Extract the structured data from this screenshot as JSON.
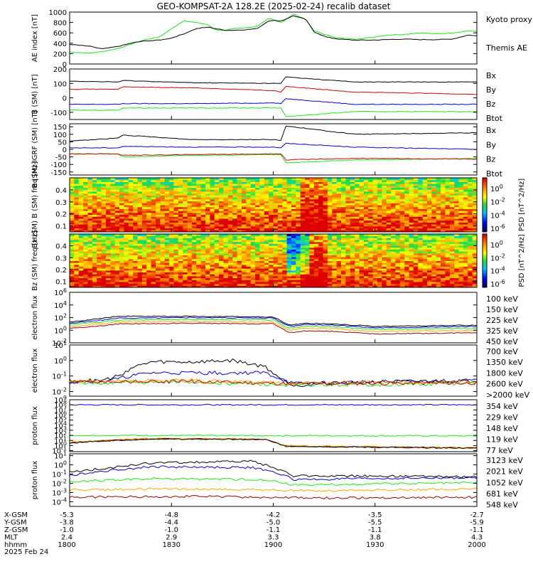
{
  "title": "GEO-KOMPSAT-2A 128.2E (2025-02-24) recalib dataset",
  "colors": {
    "black": "#000000",
    "red": "#d20000",
    "green": "#19e619",
    "blue": "#0000d2",
    "orange": "#ffa500",
    "darkred": "#960000",
    "navy": "#00008c"
  },
  "time_axis": {
    "ticks": [
      {
        "xgsm": "-5.3",
        "ygsm": "-3.8",
        "zgsm": "-1.0",
        "mlt": "2.4",
        "hhmm": "1800"
      },
      {
        "xgsm": "-4.8",
        "ygsm": "-4.4",
        "zgsm": "-1.0",
        "mlt": "2.9",
        "hhmm": "1830"
      },
      {
        "xgsm": "-4.2",
        "ygsm": "-5.0",
        "zgsm": "-1.1",
        "mlt": "3.3",
        "hhmm": "1900"
      },
      {
        "xgsm": "-3.5",
        "ygsm": "-5.5",
        "zgsm": "-1.1",
        "mlt": "3.8",
        "hhmm": "1930"
      },
      {
        "xgsm": "-2.7",
        "ygsm": "-5.9",
        "zgsm": "-1.1",
        "mlt": "4.3",
        "hhmm": "2000"
      }
    ],
    "row_labels": [
      "X-GSM",
      "Y-GSM",
      "Z-GSM",
      "MLT",
      "hhmm"
    ],
    "date_label": "2025 Feb 24"
  },
  "chart_data": [
    {
      "type": "line",
      "ylabel": "AE index [nT]",
      "ylim": [
        0,
        1000
      ],
      "yticks": [
        "0",
        "200",
        "400",
        "600",
        "800",
        "1000"
      ],
      "series": [
        {
          "name": "Kyoto proxy AE",
          "color": "#19e619",
          "x": [
            0,
            5,
            8,
            12,
            15,
            18,
            22,
            25,
            28,
            31,
            34,
            36,
            38,
            40,
            43,
            46,
            49,
            52,
            55,
            58,
            60,
            63,
            66,
            70,
            74,
            78,
            82,
            86,
            90,
            94,
            98,
            100
          ],
          "y": [
            230,
            210,
            240,
            300,
            380,
            460,
            520,
            680,
            830,
            800,
            760,
            650,
            650,
            680,
            700,
            720,
            880,
            800,
            960,
            860,
            640,
            560,
            500,
            480,
            510,
            560,
            570,
            600,
            580,
            600,
            640,
            620
          ]
        },
        {
          "name": "Themis AE",
          "color": "#000000",
          "x": [
            0,
            5,
            8,
            12,
            15,
            18,
            22,
            25,
            28,
            31,
            34,
            36,
            38,
            40,
            43,
            46,
            49,
            52,
            55,
            58,
            60,
            63,
            66,
            70,
            74,
            78,
            82,
            86,
            90,
            94,
            98,
            100
          ],
          "y": [
            380,
            340,
            290,
            340,
            400,
            440,
            460,
            500,
            580,
            680,
            710,
            680,
            650,
            650,
            660,
            680,
            840,
            830,
            930,
            860,
            620,
            520,
            480,
            460,
            460,
            470,
            480,
            470,
            470,
            480,
            560,
            540
          ]
        }
      ]
    },
    {
      "type": "line",
      "ylabel": "B (SM) [nT]",
      "ylim": [
        -150,
        200
      ],
      "yticks": [
        "-100",
        "0",
        "100",
        "200"
      ],
      "series": [
        {
          "name": "Bx",
          "color": "#0000d2",
          "x": [
            0,
            12,
            13,
            30,
            50,
            52,
            53,
            70,
            100
          ],
          "y": [
            -45,
            -45,
            -40,
            -40,
            -35,
            -40,
            -5,
            -45,
            -45
          ]
        },
        {
          "name": "By",
          "color": "#19e619",
          "x": [
            0,
            12,
            13,
            30,
            50,
            52,
            53,
            70,
            100
          ],
          "y": [
            -85,
            -85,
            -70,
            -70,
            -70,
            -70,
            -130,
            -95,
            -95
          ]
        },
        {
          "name": "Bz",
          "color": "#d20000",
          "x": [
            0,
            12,
            13,
            30,
            50,
            52,
            53,
            70,
            100
          ],
          "y": [
            60,
            60,
            75,
            70,
            50,
            40,
            80,
            40,
            25
          ]
        },
        {
          "name": "Btot",
          "color": "#000000",
          "x": [
            0,
            12,
            13,
            30,
            50,
            52,
            53,
            70,
            100
          ],
          "y": [
            115,
            110,
            120,
            105,
            100,
            100,
            145,
            110,
            110
          ]
        }
      ]
    },
    {
      "type": "line",
      "ylabel": "B (SM)-IGRF (SM) [nT]",
      "ylim": [
        -170,
        170
      ],
      "yticks": [
        "-150",
        "-100",
        "-50",
        "0",
        "50",
        "100",
        "150"
      ],
      "series": [
        {
          "name": "Bx",
          "color": "#0000d2",
          "x": [
            0,
            12,
            13,
            30,
            50,
            52,
            53,
            70,
            100
          ],
          "y": [
            10,
            10,
            20,
            15,
            15,
            10,
            40,
            15,
            0
          ]
        },
        {
          "name": "By",
          "color": "#19e619",
          "x": [
            0,
            12,
            13,
            30,
            50,
            52,
            53,
            70,
            100
          ],
          "y": [
            -30,
            -30,
            -50,
            -40,
            -35,
            -35,
            -90,
            -70,
            -60
          ]
        },
        {
          "name": "Bz",
          "color": "#d20000",
          "x": [
            0,
            12,
            13,
            30,
            50,
            52,
            53,
            70,
            100
          ],
          "y": [
            -30,
            -30,
            -40,
            -35,
            -30,
            -30,
            -70,
            -60,
            -65
          ]
        },
        {
          "name": "Btot",
          "color": "#000000",
          "x": [
            0,
            12,
            13,
            30,
            50,
            52,
            53,
            70,
            100
          ],
          "y": [
            55,
            75,
            95,
            65,
            65,
            60,
            155,
            100,
            110
          ]
        }
      ]
    },
    {
      "type": "heatmap",
      "ylabel": "Bx (SM) B (SM) freq [Hz]",
      "ylim": [
        0.05,
        0.5
      ],
      "yticks": [
        "0.1",
        "0.2",
        "0.3",
        "0.4"
      ],
      "colorbar": {
        "label": "PSD [nT^2/Hz]",
        "ticks": [
          "10^0",
          "10^-2",
          "10^-4",
          "10^-6"
        ]
      }
    },
    {
      "type": "heatmap",
      "ylabel": "Bz (SM) freq [Hz]",
      "ylim": [
        0.05,
        0.5
      ],
      "yticks": [
        "0.1",
        "0.2",
        "0.3",
        "0.4"
      ],
      "colorbar": {
        "label": "PSD [nT^2/Hz]",
        "ticks": [
          "10^0",
          "10^-2",
          "10^-4",
          "10^-6"
        ]
      }
    },
    {
      "type": "line",
      "log_scale": true,
      "ylabel": "electron flux",
      "ylim": [
        -2,
        6
      ],
      "yticks": [
        "10^-2",
        "10^0",
        "10^2",
        "10^4",
        "10^6"
      ],
      "series": [
        {
          "name": "100 keV",
          "color": "#000000",
          "x": [
            0,
            8,
            12,
            30,
            50,
            54,
            58,
            65,
            75,
            100
          ],
          "y": [
            1.3,
            1.9,
            2.2,
            2.2,
            2.1,
            0.8,
            1.1,
            1.0,
            0.6,
            0.8
          ]
        },
        {
          "name": "150 keV",
          "color": "#0000d2",
          "x": [
            0,
            8,
            12,
            30,
            50,
            54,
            58,
            65,
            75,
            100
          ],
          "y": [
            1.1,
            1.6,
            1.9,
            2.0,
            1.9,
            0.6,
            0.9,
            0.8,
            0.4,
            0.6
          ]
        },
        {
          "name": "225 keV",
          "color": "#19e619",
          "x": [
            0,
            8,
            12,
            30,
            50,
            54,
            58,
            65,
            75,
            100
          ],
          "y": [
            0.9,
            1.3,
            1.6,
            1.7,
            1.6,
            0.3,
            0.6,
            0.5,
            0.1,
            0.3
          ]
        },
        {
          "name": "325 keV",
          "color": "#ffa500",
          "x": [
            0,
            8,
            12,
            30,
            50,
            54,
            58,
            65,
            75,
            100
          ],
          "y": [
            0.6,
            1.0,
            1.3,
            1.4,
            1.3,
            0.0,
            0.3,
            0.2,
            -0.2,
            0.0
          ]
        },
        {
          "name": "450 keV",
          "color": "#960000",
          "x": [
            0,
            8,
            12,
            30,
            50,
            54,
            58,
            65,
            75,
            100
          ],
          "y": [
            0.3,
            0.7,
            1.0,
            1.1,
            1.0,
            -0.4,
            -0.1,
            -0.2,
            -0.6,
            -0.4
          ]
        }
      ]
    },
    {
      "type": "line",
      "log_scale": true,
      "ylabel": "electron flux",
      "ylim": [
        -2.3,
        1
      ],
      "yticks": [
        "10^-2",
        "10^-1",
        "10^0",
        "10^1"
      ],
      "series": [
        {
          "name": "700 keV",
          "color": "#000000",
          "x": [
            0,
            8,
            12,
            15,
            20,
            30,
            40,
            48,
            52,
            55,
            70,
            100
          ],
          "y": [
            -1.3,
            -1.3,
            -1.0,
            -0.5,
            -0.1,
            -0.1,
            0.0,
            -0.4,
            -1.2,
            -1.6,
            -1.4,
            -1.3
          ]
        },
        {
          "name": "1350 keV",
          "color": "#0000d2",
          "x": [
            0,
            8,
            12,
            15,
            20,
            30,
            40,
            48,
            52,
            55,
            70,
            100
          ],
          "y": [
            -1.4,
            -1.3,
            -1.2,
            -1.0,
            -0.8,
            -0.8,
            -0.8,
            -0.8,
            -1.2,
            -1.5,
            -1.4,
            -1.3
          ]
        },
        {
          "name": "1800 keV",
          "color": "#19e619",
          "x": [
            0,
            30,
            55,
            100
          ],
          "y": [
            -1.45,
            -1.4,
            -1.6,
            -1.5
          ]
        },
        {
          "name": "2600 keV",
          "color": "#ffa500",
          "x": [
            0,
            30,
            55,
            100
          ],
          "y": [
            -1.35,
            -1.3,
            -1.45,
            -1.4
          ]
        },
        {
          "name": ">2000 keV",
          "color": "#d20000",
          "x": [
            0,
            30,
            55,
            100
          ],
          "y": [
            -1.4,
            -1.35,
            -1.5,
            -1.45
          ]
        }
      ]
    },
    {
      "type": "line",
      "log_scale": true,
      "ylabel": "proton flux",
      "ylim": [
        -1.2,
        9
      ],
      "yticks": [
        "10^-1",
        "10^0",
        "10^1",
        "10^2",
        "10^3",
        "10^4",
        "10^5",
        "10^6",
        "10^7",
        "10^8",
        "10^9"
      ],
      "series": [
        {
          "name": "354 keV",
          "color": "#960000",
          "x": [
            0,
            10,
            20,
            48,
            53,
            70,
            100
          ],
          "y": [
            0.5,
            1.0,
            1.3,
            1.2,
            -0.1,
            -0.3,
            -0.5
          ]
        },
        {
          "name": "229 keV",
          "color": "#ffa500",
          "x": [
            0,
            10,
            20,
            48,
            53,
            70,
            100
          ],
          "y": [
            0.6,
            1.1,
            1.4,
            1.3,
            0.0,
            -0.2,
            -0.4
          ]
        },
        {
          "name": "148 keV",
          "color": "#19e619",
          "x": [
            0,
            100
          ],
          "y": [
            2.0,
            1.9
          ]
        },
        {
          "name": "119 keV",
          "color": "#0000d2",
          "x": [
            0,
            100
          ],
          "y": [
            8.0,
            8.0
          ]
        },
        {
          "name": "77 keV",
          "color": "#000000",
          "x": [
            0,
            10,
            20,
            48,
            53,
            70,
            100
          ],
          "y": [
            0.5,
            1.0,
            1.3,
            1.2,
            -0.1,
            -0.3,
            -0.5
          ]
        }
      ]
    },
    {
      "type": "line",
      "log_scale": true,
      "ylabel": "proton flux",
      "ylim": [
        -4.5,
        1.2
      ],
      "yticks": [
        "10^-4",
        "10^-3",
        "10^-2",
        "10^-1",
        "10^0",
        "10^1"
      ],
      "series": [
        {
          "name": "3123 keV",
          "color": "#960000",
          "x": [
            0,
            30,
            60,
            100
          ],
          "y": [
            -3.5,
            -3.4,
            -3.6,
            -3.5
          ]
        },
        {
          "name": "2021 keV",
          "color": "#ffa500",
          "x": [
            0,
            30,
            60,
            100
          ],
          "y": [
            -2.7,
            -2.6,
            -2.8,
            -2.6
          ]
        },
        {
          "name": "1052 keV",
          "color": "#19e619",
          "x": [
            0,
            20,
            48,
            55,
            100
          ],
          "y": [
            -1.8,
            -1.5,
            -1.6,
            -2.2,
            -1.9
          ]
        },
        {
          "name": "681 keV",
          "color": "#0000d2",
          "x": [
            0,
            10,
            20,
            45,
            52,
            55,
            70,
            100
          ],
          "y": [
            -1.1,
            -0.6,
            -0.2,
            -0.3,
            -1.0,
            -1.6,
            -1.5,
            -1.4
          ]
        },
        {
          "name": "548 keV",
          "color": "#000000",
          "x": [
            0,
            10,
            20,
            45,
            52,
            55,
            70,
            100
          ],
          "y": [
            -0.8,
            -0.3,
            0.2,
            0.4,
            -0.6,
            -1.2,
            -1.2,
            -1.3
          ]
        }
      ]
    }
  ]
}
